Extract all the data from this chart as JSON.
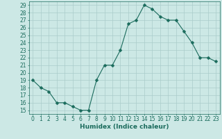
{
  "xlabel": "Humidex (Indice chaleur)",
  "x": [
    0,
    1,
    2,
    3,
    4,
    5,
    6,
    7,
    8,
    9,
    10,
    11,
    12,
    13,
    14,
    15,
    16,
    17,
    18,
    19,
    20,
    21,
    22,
    23
  ],
  "y": [
    19,
    18,
    17.5,
    16,
    16,
    15.5,
    15,
    15,
    19,
    21,
    21,
    23,
    26.5,
    27,
    29,
    28.5,
    27.5,
    27,
    27,
    25.5,
    24,
    22,
    22,
    21.5
  ],
  "line_color": "#1a6b5c",
  "marker": "D",
  "marker_size": 2.5,
  "bg_color": "#cce8e5",
  "grid_color": "#aaccca",
  "ylim": [
    14.5,
    29.5
  ],
  "xlim": [
    -0.5,
    23.5
  ],
  "yticks": [
    15,
    16,
    17,
    18,
    19,
    20,
    21,
    22,
    23,
    24,
    25,
    26,
    27,
    28,
    29
  ],
  "xticks": [
    0,
    1,
    2,
    3,
    4,
    5,
    6,
    7,
    8,
    9,
    10,
    11,
    12,
    13,
    14,
    15,
    16,
    17,
    18,
    19,
    20,
    21,
    22,
    23
  ],
  "tick_label_fontsize": 5.5,
  "xlabel_fontsize": 6.5,
  "tick_color": "#1a6b5c",
  "label_color": "#1a6b5c",
  "linewidth": 0.8
}
